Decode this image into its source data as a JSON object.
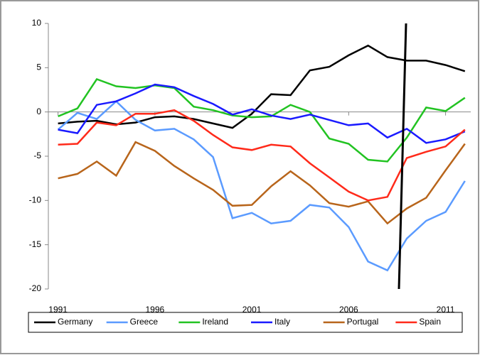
{
  "chart_data": {
    "type": "line",
    "x": [
      1991,
      1992,
      1993,
      1994,
      1995,
      1996,
      1997,
      1998,
      1999,
      2000,
      2001,
      2002,
      2003,
      2004,
      2005,
      2006,
      2007,
      2008,
      2009,
      2010,
      2011,
      2012
    ],
    "series": [
      {
        "name": "Germany",
        "color": "#000000",
        "values": [
          -1.3,
          -1.1,
          -1.0,
          -1.4,
          -1.2,
          -0.6,
          -0.5,
          -0.8,
          -1.3,
          -1.8,
          -0.2,
          2.0,
          1.9,
          4.7,
          5.1,
          6.4,
          7.5,
          6.2,
          5.8,
          5.8,
          5.3,
          4.6
        ]
      },
      {
        "name": "Greece",
        "color": "#5b9bff",
        "values": [
          -2.0,
          -0.1,
          -0.8,
          1.2,
          -0.9,
          -2.1,
          -1.9,
          -3.1,
          -5.1,
          -12.0,
          -11.4,
          -12.6,
          -12.3,
          -10.5,
          -10.8,
          -13.0,
          -16.9,
          -17.9,
          -14.3,
          -12.3,
          -11.3,
          -7.8
        ]
      },
      {
        "name": "Ireland",
        "color": "#22c322",
        "values": [
          -0.5,
          0.4,
          3.7,
          2.9,
          2.7,
          3.0,
          2.7,
          0.6,
          0.2,
          -0.4,
          -0.6,
          -0.5,
          0.8,
          0.0,
          -3.0,
          -3.6,
          -5.4,
          -5.6,
          -2.9,
          0.5,
          0.1,
          1.6
        ]
      },
      {
        "name": "Italy",
        "color": "#1a1aff",
        "values": [
          -2.0,
          -2.4,
          0.8,
          1.2,
          2.1,
          3.1,
          2.8,
          1.8,
          0.9,
          -0.3,
          0.3,
          -0.4,
          -0.8,
          -0.3,
          -0.9,
          -1.5,
          -1.3,
          -2.9,
          -1.9,
          -3.5,
          -3.1,
          -2.2
        ]
      },
      {
        "name": "Portugal",
        "color": "#b8651b",
        "values": [
          -7.5,
          -7.0,
          -5.6,
          -7.2,
          -3.4,
          -4.4,
          -6.1,
          -7.5,
          -8.8,
          -10.6,
          -10.5,
          -8.4,
          -6.7,
          -8.3,
          -10.3,
          -10.7,
          -10.1,
          -12.6,
          -10.9,
          -9.7,
          -6.6,
          -3.6
        ]
      },
      {
        "name": "Spain",
        "color": "#ff2a1a",
        "values": [
          -3.7,
          -3.6,
          -1.2,
          -1.5,
          -0.2,
          -0.2,
          0.2,
          -1.0,
          -2.6,
          -4.0,
          -4.3,
          -3.7,
          -3.9,
          -5.8,
          -7.4,
          -9.0,
          -10.0,
          -9.6,
          -5.2,
          -4.5,
          -3.9,
          -2.0
        ]
      }
    ],
    "xlim": [
      1990.5,
      2012.3
    ],
    "xticks": [
      1991,
      1996,
      2001,
      2006,
      2011
    ],
    "ylim": [
      -20,
      10
    ],
    "yticks": [
      -20,
      -15,
      -10,
      -5,
      0,
      5,
      10
    ],
    "legend": "bottom"
  }
}
